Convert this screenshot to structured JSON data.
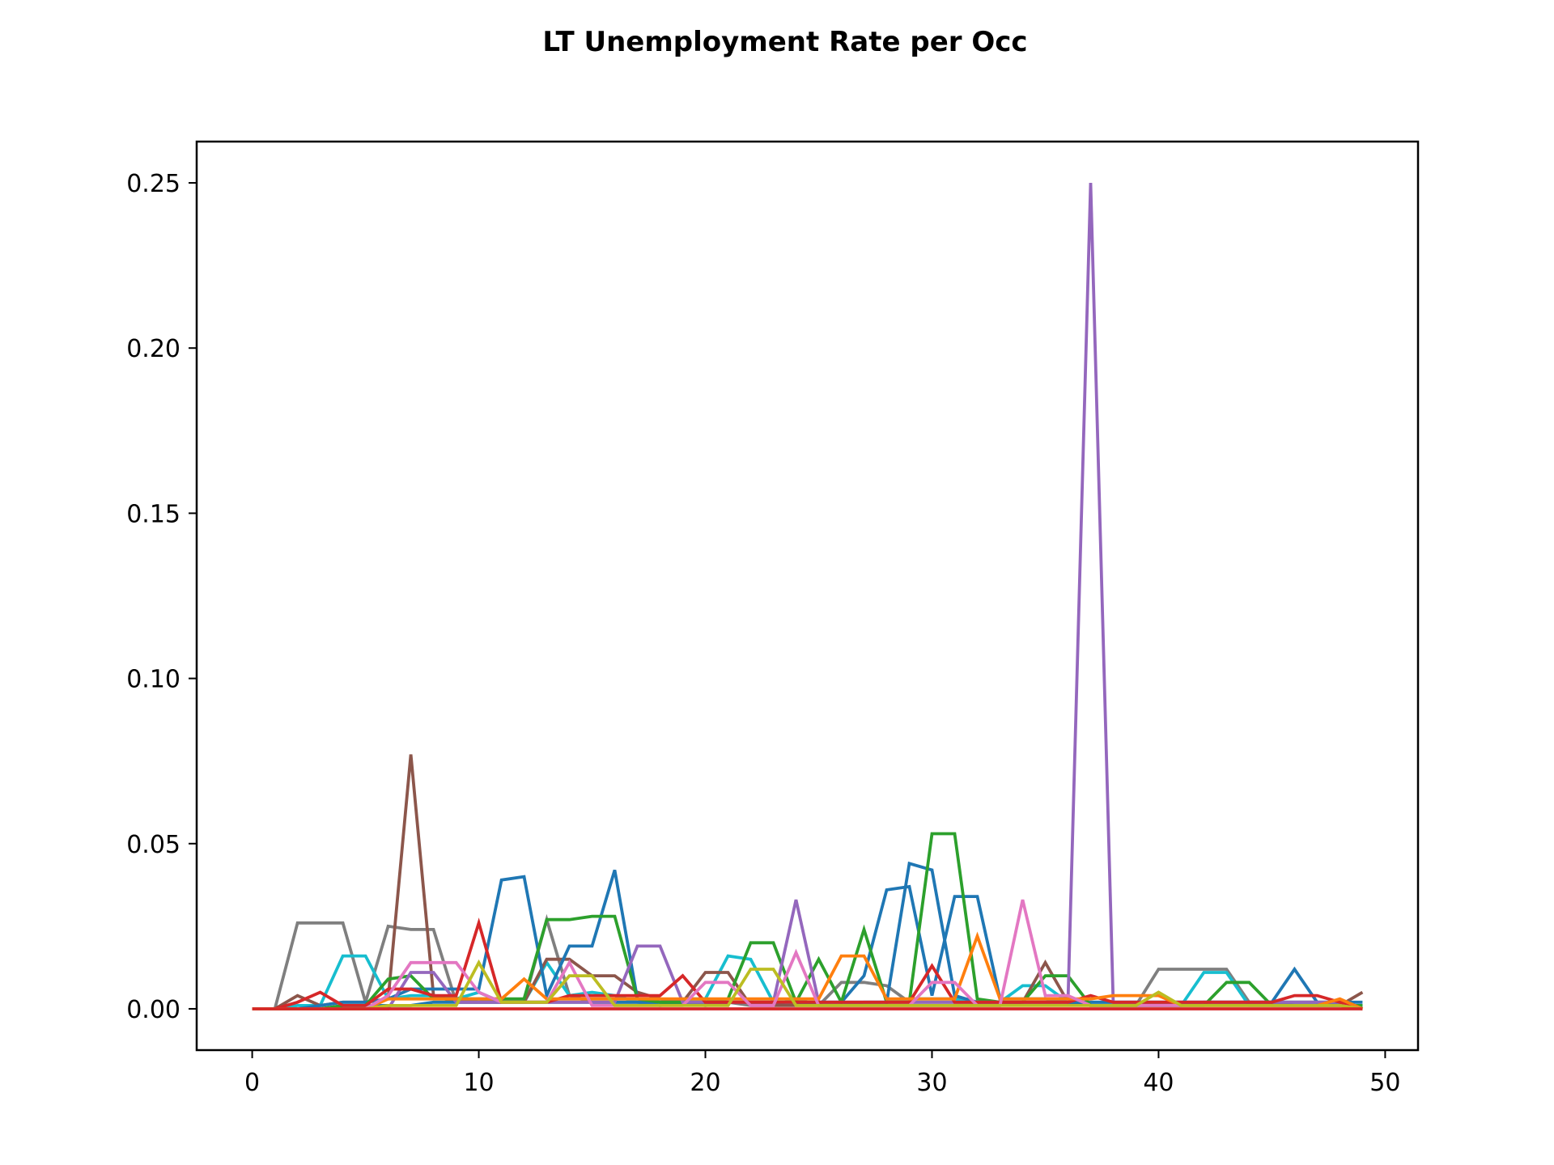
{
  "chart_data": {
    "type": "line",
    "title": "LT Unemployment Rate per Occ",
    "xlabel": "",
    "ylabel": "",
    "xlim": [
      -2.45,
      51.45
    ],
    "ylim": [
      -0.0125,
      0.2625
    ],
    "xticks": [
      0,
      10,
      20,
      30,
      40,
      50
    ],
    "xtick_labels": [
      "0",
      "10",
      "20",
      "30",
      "40",
      "50"
    ],
    "yticks": [
      0.0,
      0.05,
      0.1,
      0.15,
      0.2,
      0.25
    ],
    "ytick_labels": [
      "0.00",
      "0.05",
      "0.10",
      "0.15",
      "0.20",
      "0.25"
    ],
    "grid": false,
    "legend": "none",
    "x": [
      0,
      1,
      2,
      3,
      4,
      5,
      6,
      7,
      8,
      9,
      10,
      11,
      12,
      13,
      14,
      15,
      16,
      17,
      18,
      19,
      20,
      21,
      22,
      23,
      24,
      25,
      26,
      27,
      28,
      29,
      30,
      31,
      32,
      33,
      34,
      35,
      36,
      37,
      38,
      39,
      40,
      41,
      42,
      43,
      44,
      45,
      46,
      47,
      48,
      49
    ],
    "series": [
      {
        "color": "#7f7f7f",
        "values": [
          0,
          0,
          0.026,
          0.026,
          0.026,
          0.002,
          0.025,
          0.024,
          0.024,
          0.002,
          0.003,
          0.002,
          0.002,
          0.027,
          0.004,
          0.002,
          0.002,
          0.002,
          0.001,
          0.002,
          0.001,
          0.002,
          0.001,
          0.001,
          0.003,
          0.001,
          0.008,
          0.008,
          0.007,
          0.002,
          0.002,
          0.002,
          0.002,
          0.002,
          0.002,
          0.002,
          0.002,
          0.001,
          0.001,
          0.001,
          0.012,
          0.012,
          0.012,
          0.012,
          0.002,
          0.002,
          0.001,
          0.001,
          0.001,
          0.001
        ]
      },
      {
        "color": "#17becf",
        "values": [
          0,
          0,
          0.001,
          0.001,
          0.016,
          0.016,
          0.003,
          0.004,
          0.004,
          0.003,
          0.005,
          0.002,
          0.002,
          0.014,
          0.004,
          0.005,
          0.004,
          0.002,
          0.002,
          0.003,
          0.003,
          0.016,
          0.015,
          0.002,
          0.002,
          0.001,
          0.001,
          0.002,
          0.002,
          0.003,
          0.003,
          0.003,
          0.002,
          0.002,
          0.007,
          0.007,
          0.002,
          0.001,
          0.001,
          0.001,
          0.001,
          0.001,
          0.011,
          0.011,
          0.001,
          0.001,
          0.001,
          0.001,
          0.001,
          0
        ]
      },
      {
        "color": "#8c564b",
        "values": [
          0,
          0,
          0.004,
          0.001,
          0.002,
          0.002,
          0.003,
          0.077,
          0.004,
          0.002,
          0.002,
          0.002,
          0.002,
          0.015,
          0.015,
          0.01,
          0.01,
          0.005,
          0.003,
          0.002,
          0.011,
          0.011,
          0.001,
          0.001,
          0.001,
          0.001,
          0.001,
          0.001,
          0.001,
          0.001,
          0.001,
          0.001,
          0.001,
          0.001,
          0.002,
          0.014,
          0.002,
          0.001,
          0.001,
          0.001,
          0.001,
          0.001,
          0.002,
          0.002,
          0.002,
          0.002,
          0.002,
          0.002,
          0.001,
          0.005
        ]
      },
      {
        "color": "#1f77b4",
        "values": [
          0,
          0,
          0,
          0.001,
          0.002,
          0.002,
          0.003,
          0.006,
          0.006,
          0.006,
          0.006,
          0.039,
          0.04,
          0.004,
          0.019,
          0.019,
          0.042,
          0.003,
          0.002,
          0.002,
          0.002,
          0.002,
          0.002,
          0.002,
          0.002,
          0.002,
          0.002,
          0.01,
          0.036,
          0.037,
          0.004,
          0.034,
          0.034,
          0.003,
          0.003,
          0.003,
          0.002,
          0.002,
          0.002,
          0.002,
          0.002,
          0.002,
          0.002,
          0.002,
          0.002,
          0.002,
          0.012,
          0.002,
          0.002,
          0.002
        ]
      },
      {
        "color": "#1f77b4",
        "values": [
          0,
          0,
          0,
          0,
          0.001,
          0.001,
          0.001,
          0.001,
          0.002,
          0.002,
          0.002,
          0.002,
          0.002,
          0.002,
          0.002,
          0.002,
          0.002,
          0.002,
          0.002,
          0.002,
          0.002,
          0.002,
          0.002,
          0.002,
          0.002,
          0.002,
          0.002,
          0.002,
          0.002,
          0.044,
          0.042,
          0.004,
          0.002,
          0.002,
          0.002,
          0.002,
          0.002,
          0.002,
          0.002,
          0.002,
          0.002,
          0.002,
          0.002,
          0.002,
          0.002,
          0.002,
          0.002,
          0.002,
          0.002,
          0
        ]
      },
      {
        "color": "#2ca02c",
        "values": [
          0,
          0,
          0,
          0,
          0.001,
          0.001,
          0.009,
          0.01,
          0.003,
          0.003,
          0.003,
          0.003,
          0.003,
          0.027,
          0.027,
          0.028,
          0.028,
          0.003,
          0.002,
          0.002,
          0.002,
          0.003,
          0.02,
          0.02,
          0.002,
          0.015,
          0.002,
          0.024,
          0.002,
          0.002,
          0.053,
          0.053,
          0.003,
          0.002,
          0.002,
          0.01,
          0.01,
          0.001,
          0.001,
          0.001,
          0.001,
          0.001,
          0.001,
          0.008,
          0.008,
          0.001,
          0.001,
          0.001,
          0.001,
          0.001
        ]
      },
      {
        "color": "#9467bd",
        "values": [
          0,
          0,
          0,
          0,
          0,
          0,
          0,
          0.011,
          0.011,
          0.002,
          0.002,
          0.002,
          0.002,
          0.002,
          0.002,
          0.002,
          0.002,
          0.019,
          0.019,
          0.002,
          0.002,
          0.002,
          0.002,
          0.002,
          0.033,
          0.002,
          0.002,
          0.002,
          0.002,
          0.002,
          0.002,
          0.002,
          0.002,
          0.002,
          0.002,
          0.002,
          0.002,
          0.25,
          0.002,
          0.002,
          0.002,
          0.002,
          0.002,
          0.002,
          0.002,
          0.002,
          0.002,
          0.002,
          0.002,
          0
        ]
      },
      {
        "color": "#d62728",
        "values": [
          0,
          0,
          0.002,
          0.005,
          0.001,
          0.001,
          0.006,
          0.006,
          0.004,
          0.004,
          0.026,
          0.002,
          0.002,
          0.002,
          0.004,
          0.004,
          0.004,
          0.004,
          0.004,
          0.01,
          0.002,
          0.002,
          0.002,
          0.002,
          0.002,
          0.002,
          0.002,
          0.002,
          0.002,
          0.002,
          0.013,
          0.002,
          0.002,
          0.002,
          0.002,
          0.002,
          0.002,
          0.004,
          0.002,
          0.002,
          0.002,
          0.002,
          0.002,
          0.002,
          0.002,
          0.002,
          0.004,
          0.004,
          0.002,
          0
        ]
      },
      {
        "color": "#ff7f0e",
        "values": [
          0,
          0,
          0,
          0,
          0,
          0,
          0.003,
          0.003,
          0.003,
          0.003,
          0.003,
          0.003,
          0.009,
          0.003,
          0.003,
          0.003,
          0.003,
          0.003,
          0.003,
          0.003,
          0.003,
          0.003,
          0.003,
          0.003,
          0.003,
          0.003,
          0.016,
          0.016,
          0.003,
          0.003,
          0.003,
          0.003,
          0.022,
          0.003,
          0.003,
          0.003,
          0.003,
          0.003,
          0.004,
          0.004,
          0.004,
          0.001,
          0.001,
          0.001,
          0.001,
          0.001,
          0.001,
          0.001,
          0.003,
          0
        ]
      },
      {
        "color": "#e377c2",
        "values": [
          0,
          0,
          0,
          0,
          0,
          0,
          0.004,
          0.014,
          0.014,
          0.014,
          0.005,
          0.002,
          0.002,
          0.002,
          0.014,
          0.001,
          0.001,
          0.001,
          0.001,
          0.001,
          0.008,
          0.008,
          0.001,
          0.001,
          0.017,
          0.001,
          0.001,
          0.001,
          0.001,
          0.001,
          0.008,
          0.008,
          0.001,
          0.001,
          0.033,
          0.004,
          0.004,
          0.001,
          0.001,
          0.001,
          0.001,
          0.001,
          0.001,
          0.001,
          0.001,
          0.001,
          0.001,
          0.001,
          0.001,
          0
        ]
      },
      {
        "color": "#bcbd22",
        "values": [
          0,
          0,
          0,
          0,
          0,
          0,
          0.001,
          0.001,
          0.001,
          0.001,
          0.014,
          0.002,
          0.002,
          0.002,
          0.01,
          0.01,
          0.001,
          0.001,
          0.001,
          0.001,
          0.001,
          0.001,
          0.012,
          0.012,
          0.001,
          0.001,
          0.001,
          0.001,
          0.001,
          0.001,
          0.001,
          0.001,
          0.001,
          0.001,
          0.001,
          0.001,
          0.001,
          0.001,
          0.001,
          0.001,
          0.005,
          0.001,
          0.001,
          0.001,
          0.001,
          0.001,
          0.001,
          0.001,
          0.001,
          0
        ]
      },
      {
        "color": "#d62728",
        "values": [
          0,
          0,
          0,
          0,
          0,
          0,
          0,
          0,
          0,
          0,
          0,
          0,
          0,
          0,
          0,
          0,
          0,
          0,
          0,
          0,
          0,
          0,
          0,
          0,
          0,
          0,
          0,
          0,
          0,
          0,
          0,
          0,
          0,
          0,
          0,
          0,
          0,
          0,
          0,
          0,
          0,
          0,
          0,
          0,
          0,
          0,
          0,
          0,
          0,
          0
        ]
      }
    ]
  }
}
